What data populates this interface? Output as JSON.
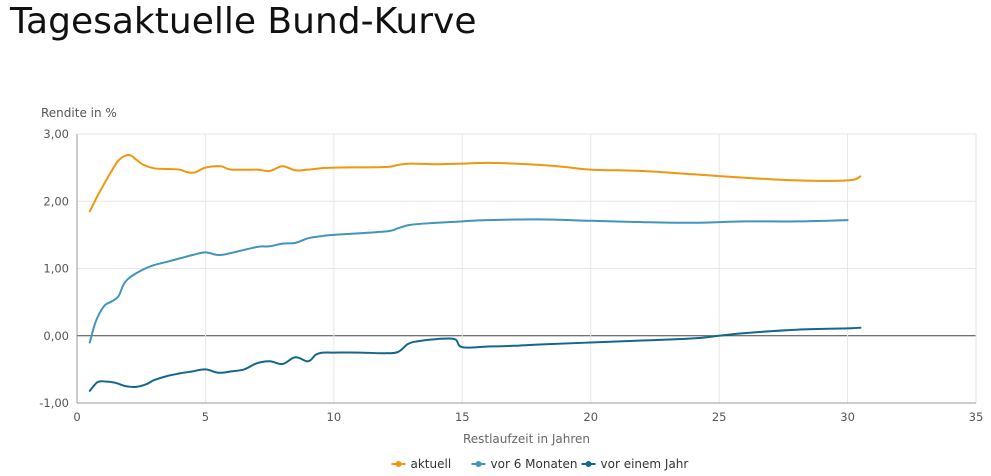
{
  "page": {
    "title": "Tagesaktuelle Bund-Kurve"
  },
  "chart_data": {
    "type": "line",
    "ylabel": "Rendite in  %",
    "xlabel": "Restlaufzeit in Jahren",
    "xlim": [
      0,
      35
    ],
    "ylim": [
      -1,
      3
    ],
    "x_ticks": [
      0,
      5,
      10,
      15,
      20,
      25,
      30,
      35
    ],
    "x_tick_labels": [
      "0",
      "5",
      "10",
      "15",
      "20",
      "25",
      "30",
      "35"
    ],
    "y_ticks": [
      -1,
      0,
      1,
      2,
      3
    ],
    "y_tick_labels": [
      "-1,00",
      "0,00",
      "1,00",
      "2,00",
      "3,00"
    ],
    "grid": true,
    "legend_position": "bottom-center",
    "series": [
      {
        "name": "aktuell",
        "color": "#f0960f",
        "x": [
          0.5,
          0.8,
          1.0,
          1.3,
          1.6,
          1.9,
          2.1,
          2.3,
          2.6,
          3.0,
          3.5,
          4.0,
          4.3,
          4.6,
          5.0,
          5.6,
          6.0,
          7.0,
          7.5,
          8.0,
          8.5,
          9.0,
          9.5,
          10.0,
          12.0,
          12.5,
          13.0,
          14.0,
          15.0,
          16.0,
          17.0,
          18.0,
          19.0,
          20.0,
          22.0,
          24.0,
          26.0,
          28.0,
          30.0,
          30.5
        ],
        "y": [
          1.85,
          2.08,
          2.22,
          2.42,
          2.6,
          2.68,
          2.68,
          2.62,
          2.54,
          2.49,
          2.48,
          2.47,
          2.43,
          2.43,
          2.5,
          2.52,
          2.47,
          2.47,
          2.45,
          2.52,
          2.46,
          2.47,
          2.49,
          2.5,
          2.51,
          2.54,
          2.56,
          2.55,
          2.56,
          2.57,
          2.56,
          2.54,
          2.51,
          2.47,
          2.45,
          2.4,
          2.35,
          2.31,
          2.31,
          2.37
        ]
      },
      {
        "name": "vor 6 Monaten",
        "color": "#4194ba",
        "x": [
          0.5,
          0.7,
          0.9,
          1.1,
          1.3,
          1.6,
          1.8,
          2.0,
          2.5,
          3.0,
          3.5,
          4.0,
          4.5,
          5.0,
          5.5,
          6.0,
          7.0,
          7.5,
          8.0,
          8.5,
          9.0,
          9.5,
          10.0,
          12.0,
          12.5,
          13.0,
          14.0,
          15.0,
          16.0,
          18.0,
          20.0,
          22.0,
          24.0,
          26.0,
          28.0,
          30.0
        ],
        "y": [
          -0.1,
          0.18,
          0.35,
          0.46,
          0.5,
          0.58,
          0.75,
          0.85,
          0.97,
          1.05,
          1.1,
          1.15,
          1.2,
          1.24,
          1.2,
          1.23,
          1.32,
          1.33,
          1.37,
          1.38,
          1.45,
          1.48,
          1.5,
          1.55,
          1.6,
          1.65,
          1.68,
          1.7,
          1.72,
          1.73,
          1.71,
          1.69,
          1.68,
          1.7,
          1.7,
          1.72
        ]
      },
      {
        "name": "vor einem Jahr",
        "color": "#13678a",
        "x": [
          0.5,
          0.8,
          1.1,
          1.5,
          1.9,
          2.3,
          2.7,
          3.0,
          3.5,
          4.0,
          4.5,
          5.0,
          5.5,
          6.0,
          6.5,
          7.0,
          7.5,
          8.0,
          8.5,
          9.0,
          9.3,
          9.6,
          10.0,
          11.0,
          12.0,
          12.5,
          12.9,
          13.3,
          14.0,
          14.7,
          15.0,
          16.0,
          17.0,
          18.0,
          20.0,
          22.0,
          24.0,
          25.0,
          26.0,
          28.0,
          30.0,
          30.5
        ],
        "y": [
          -0.82,
          -0.69,
          -0.68,
          -0.7,
          -0.75,
          -0.76,
          -0.72,
          -0.66,
          -0.6,
          -0.56,
          -0.53,
          -0.5,
          -0.55,
          -0.53,
          -0.5,
          -0.41,
          -0.38,
          -0.42,
          -0.32,
          -0.38,
          -0.28,
          -0.25,
          -0.25,
          -0.25,
          -0.26,
          -0.24,
          -0.12,
          -0.08,
          -0.05,
          -0.05,
          -0.17,
          -0.16,
          -0.15,
          -0.13,
          -0.1,
          -0.07,
          -0.04,
          0.0,
          0.04,
          0.09,
          0.11,
          0.12
        ]
      }
    ]
  }
}
